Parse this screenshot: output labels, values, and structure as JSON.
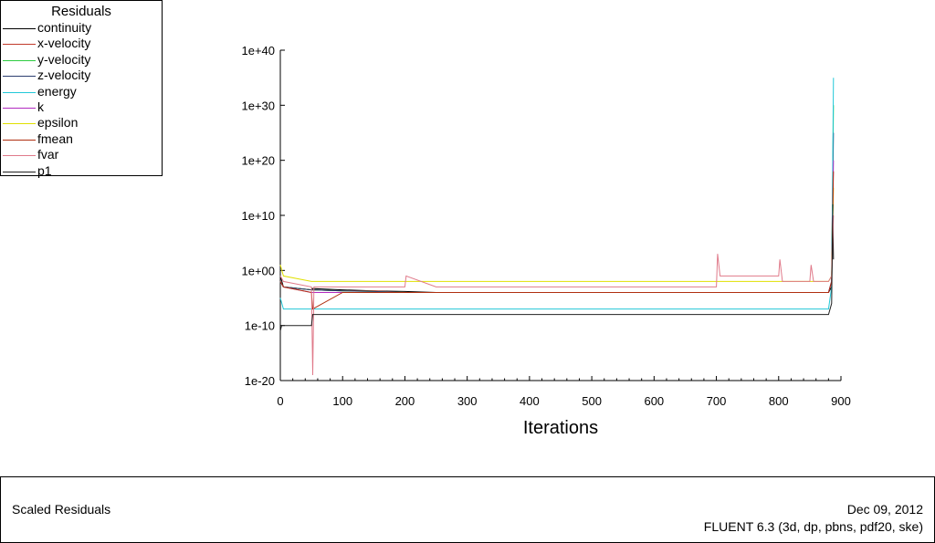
{
  "legend": {
    "title": "Residuals"
  },
  "footer": {
    "left_label": "Scaled Residuals",
    "date": "Dec 09, 2012",
    "version": "FLUENT 6.3 (3d, dp, pbns, pdf20, ske)"
  },
  "chart_data": {
    "type": "line",
    "title": "",
    "xlabel": "Iterations",
    "ylabel": "",
    "xlim": [
      0,
      900
    ],
    "ylim": [
      1e-20,
      1e+40
    ],
    "y_scale": "log",
    "x_ticks": [
      "0",
      "100",
      "200",
      "300",
      "400",
      "500",
      "600",
      "700",
      "800",
      "900"
    ],
    "y_ticks": [
      "1e-20",
      "1e-10",
      "1e+00",
      "1e+10",
      "1e+20",
      "1e+30",
      "1e+40"
    ],
    "grid": false,
    "legend_position": "top-left",
    "series": [
      {
        "name": "continuity",
        "color": "#000000",
        "x": [
          0,
          5,
          50,
          51,
          100,
          150,
          200,
          250,
          300,
          350,
          400,
          450,
          500,
          550,
          600,
          650,
          700,
          750,
          800,
          850,
          875,
          880,
          885,
          887,
          888
        ],
        "y": [
          0.1,
          0.001,
          0.0003,
          0.0005,
          0.0003,
          0.0002,
          0.00015,
          0.0001,
          0.0001,
          0.0001,
          0.0001,
          0.0001,
          0.0001,
          0.0001,
          0.0001,
          0.0001,
          0.0001,
          0.0001,
          0.0001,
          0.0001,
          0.0001,
          0.0001,
          0.001,
          10000000000.0,
          100.0
        ]
      },
      {
        "name": "x-velocity",
        "color": "#c0392b",
        "x": [
          0,
          5,
          50,
          100,
          150,
          200,
          250,
          300,
          350,
          400,
          450,
          500,
          550,
          600,
          650,
          700,
          750,
          800,
          850,
          880,
          885,
          887
        ],
        "y": [
          0.01,
          0.001,
          0.0003,
          0.0002,
          0.0002,
          0.0001,
          0.0001,
          0.0001,
          0.0001,
          0.0001,
          0.0001,
          0.0001,
          0.0001,
          0.0001,
          0.0001,
          0.0001,
          0.0001,
          0.0001,
          0.0001,
          0.0001,
          0.01,
          1e+20
        ]
      },
      {
        "name": "y-velocity",
        "color": "#2ecc40",
        "x": [
          0,
          5,
          50,
          100,
          150,
          200,
          250,
          300,
          350,
          400,
          450,
          500,
          550,
          600,
          650,
          700,
          750,
          800,
          850,
          880,
          885,
          888
        ],
        "y": [
          0.01,
          0.001,
          0.0003,
          0.0002,
          0.00015,
          0.0001,
          0.0001,
          0.0001,
          0.0001,
          0.0001,
          0.0001,
          0.0001,
          0.0001,
          0.0001,
          0.0001,
          0.0001,
          0.0001,
          0.0001,
          0.0001,
          0.0001,
          0.01,
          1e+30
        ]
      },
      {
        "name": "z-velocity",
        "color": "#2c3e70",
        "x": [
          0,
          5,
          50,
          100,
          150,
          200,
          250,
          300,
          350,
          400,
          450,
          500,
          550,
          600,
          650,
          700,
          750,
          800,
          850,
          880,
          885,
          888
        ],
        "y": [
          0.01,
          0.001,
          0.0003,
          0.0002,
          0.00015,
          0.0001,
          0.0001,
          0.0001,
          0.0001,
          0.0001,
          0.0001,
          0.0001,
          0.0001,
          0.0001,
          0.0001,
          0.0001,
          0.0001,
          0.0001,
          0.0001,
          0.0001,
          0.01,
          1e+25
        ]
      },
      {
        "name": "energy",
        "color": "#22c8d8",
        "x": [
          0,
          5,
          50,
          100,
          150,
          200,
          250,
          300,
          350,
          400,
          450,
          500,
          550,
          600,
          650,
          700,
          750,
          800,
          850,
          880,
          885,
          888
        ],
        "y": [
          1e-05,
          1e-07,
          1e-07,
          1e-07,
          1e-07,
          1e-07,
          1e-07,
          1e-07,
          1e-07,
          1e-07,
          1e-07,
          1e-07,
          1e-07,
          1e-07,
          1e-07,
          1e-07,
          1e-07,
          1e-07,
          1e-07,
          1e-07,
          0.001,
          1e+35
        ]
      },
      {
        "name": "k",
        "color": "#b22ac0",
        "x": [
          0,
          5,
          50,
          100,
          150,
          200,
          250,
          300,
          350,
          400,
          450,
          500,
          550,
          600,
          650,
          700,
          750,
          800,
          850,
          880,
          885,
          888
        ],
        "y": [
          0.01,
          0.001,
          0.0001,
          0.0001,
          0.0001,
          0.0001,
          0.0001,
          0.0001,
          0.0001,
          0.0001,
          0.0001,
          0.0001,
          0.0001,
          0.0001,
          0.0001,
          0.0001,
          0.0001,
          0.0001,
          0.0001,
          0.0001,
          0.01,
          1e+20
        ]
      },
      {
        "name": "epsilon",
        "color": "#e0e000",
        "x": [
          0,
          5,
          50,
          100,
          150,
          200,
          250,
          300,
          350,
          400,
          450,
          500,
          550,
          600,
          650,
          700,
          750,
          800,
          850,
          880,
          885,
          888
        ],
        "y": [
          10.0,
          0.1,
          0.01,
          0.01,
          0.01,
          0.01,
          0.01,
          0.01,
          0.01,
          0.01,
          0.01,
          0.01,
          0.01,
          0.01,
          0.01,
          0.01,
          0.01,
          0.01,
          0.01,
          0.01,
          0.1,
          1000000000000000.0
        ]
      },
      {
        "name": "fmean",
        "color": "#b03010",
        "x": [
          0,
          5,
          50,
          52,
          100,
          150,
          200,
          250,
          300,
          350,
          400,
          450,
          500,
          550,
          600,
          650,
          700,
          750,
          800,
          850,
          880,
          885,
          888
        ],
        "y": [
          0.01,
          0.001,
          0.0001,
          1e-07,
          0.0001,
          0.0001,
          0.0001,
          0.0001,
          0.0001,
          0.0001,
          0.0001,
          0.0001,
          0.0001,
          0.0001,
          0.0001,
          0.0001,
          0.0001,
          0.0001,
          0.0001,
          0.0001,
          0.0001,
          0.01,
          1e+18
        ]
      },
      {
        "name": "fvar",
        "color": "#e07a8a",
        "x": [
          0,
          5,
          50,
          52,
          54,
          100,
          150,
          200,
          202,
          250,
          300,
          350,
          400,
          450,
          500,
          550,
          600,
          650,
          700,
          702,
          706,
          750,
          800,
          802,
          806,
          850,
          852,
          856,
          880,
          885,
          888
        ],
        "y": [
          0.1,
          0.01,
          0.001,
          1e-19,
          0.001,
          0.001,
          0.001,
          0.001,
          0.1,
          0.001,
          0.001,
          0.001,
          0.001,
          0.001,
          0.001,
          0.001,
          0.001,
          0.001,
          0.001,
          1000.0,
          0.1,
          0.1,
          0.1,
          100.0,
          0.01,
          0.01,
          10.0,
          0.01,
          0.01,
          0.1,
          10000000000.0
        ]
      },
      {
        "name": "p1",
        "color": "#202020",
        "x": [
          0,
          2,
          50,
          52,
          100,
          150,
          200,
          250,
          300,
          350,
          400,
          450,
          500,
          550,
          600,
          650,
          700,
          750,
          800,
          850,
          880,
          885,
          887
        ],
        "y": [
          1e-11,
          1e-10,
          1e-10,
          1e-08,
          1e-08,
          1e-08,
          1e-08,
          1e-08,
          1e-08,
          1e-08,
          1e-08,
          1e-08,
          1e-08,
          1e-08,
          1e-08,
          1e-08,
          1e-08,
          1e-08,
          1e-08,
          1e-08,
          1e-08,
          1e-06,
          1000000000000.0
        ]
      }
    ]
  }
}
